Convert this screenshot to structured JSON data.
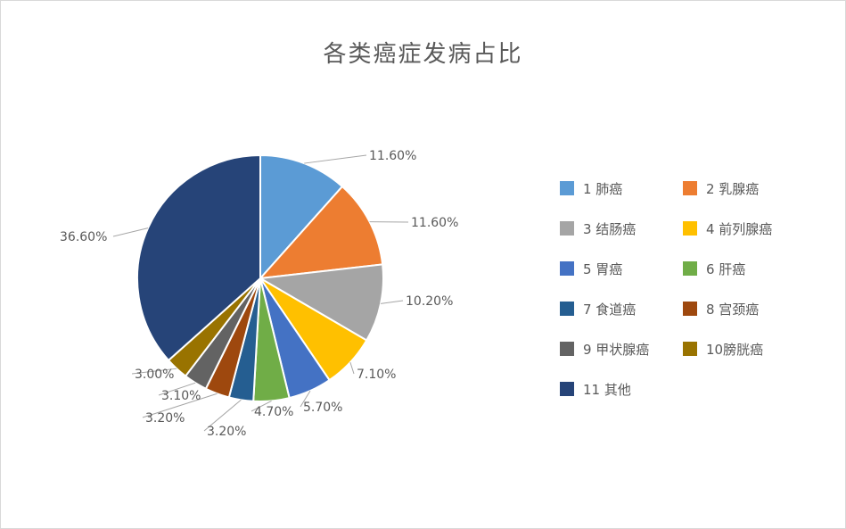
{
  "chart_data": {
    "type": "pie",
    "title": "各类癌症发病占比",
    "categories": [
      "1 肺癌",
      "2 乳腺癌",
      "3 结肠癌",
      "4 前列腺癌",
      "5 胃癌",
      "6 肝癌",
      "7 食道癌",
      "8 宫颈癌",
      "9 甲状腺癌",
      "10膀胱癌",
      "11 其他"
    ],
    "values": [
      11.6,
      11.6,
      10.2,
      7.1,
      5.7,
      4.7,
      3.2,
      3.2,
      3.1,
      3.0,
      36.6
    ],
    "data_labels": [
      "11.60%",
      "11.60%",
      "10.20%",
      "7.10%",
      "5.70%",
      "4.70%",
      "3.20%",
      "3.20%",
      "3.10%",
      "3.00%",
      "36.60%"
    ],
    "colors": [
      "#5b9bd5",
      "#ed7d31",
      "#a5a5a5",
      "#ffc000",
      "#4472c4",
      "#70ad47",
      "#255e91",
      "#9e480e",
      "#636363",
      "#997300",
      "#264478"
    ],
    "legend_position": "right"
  }
}
